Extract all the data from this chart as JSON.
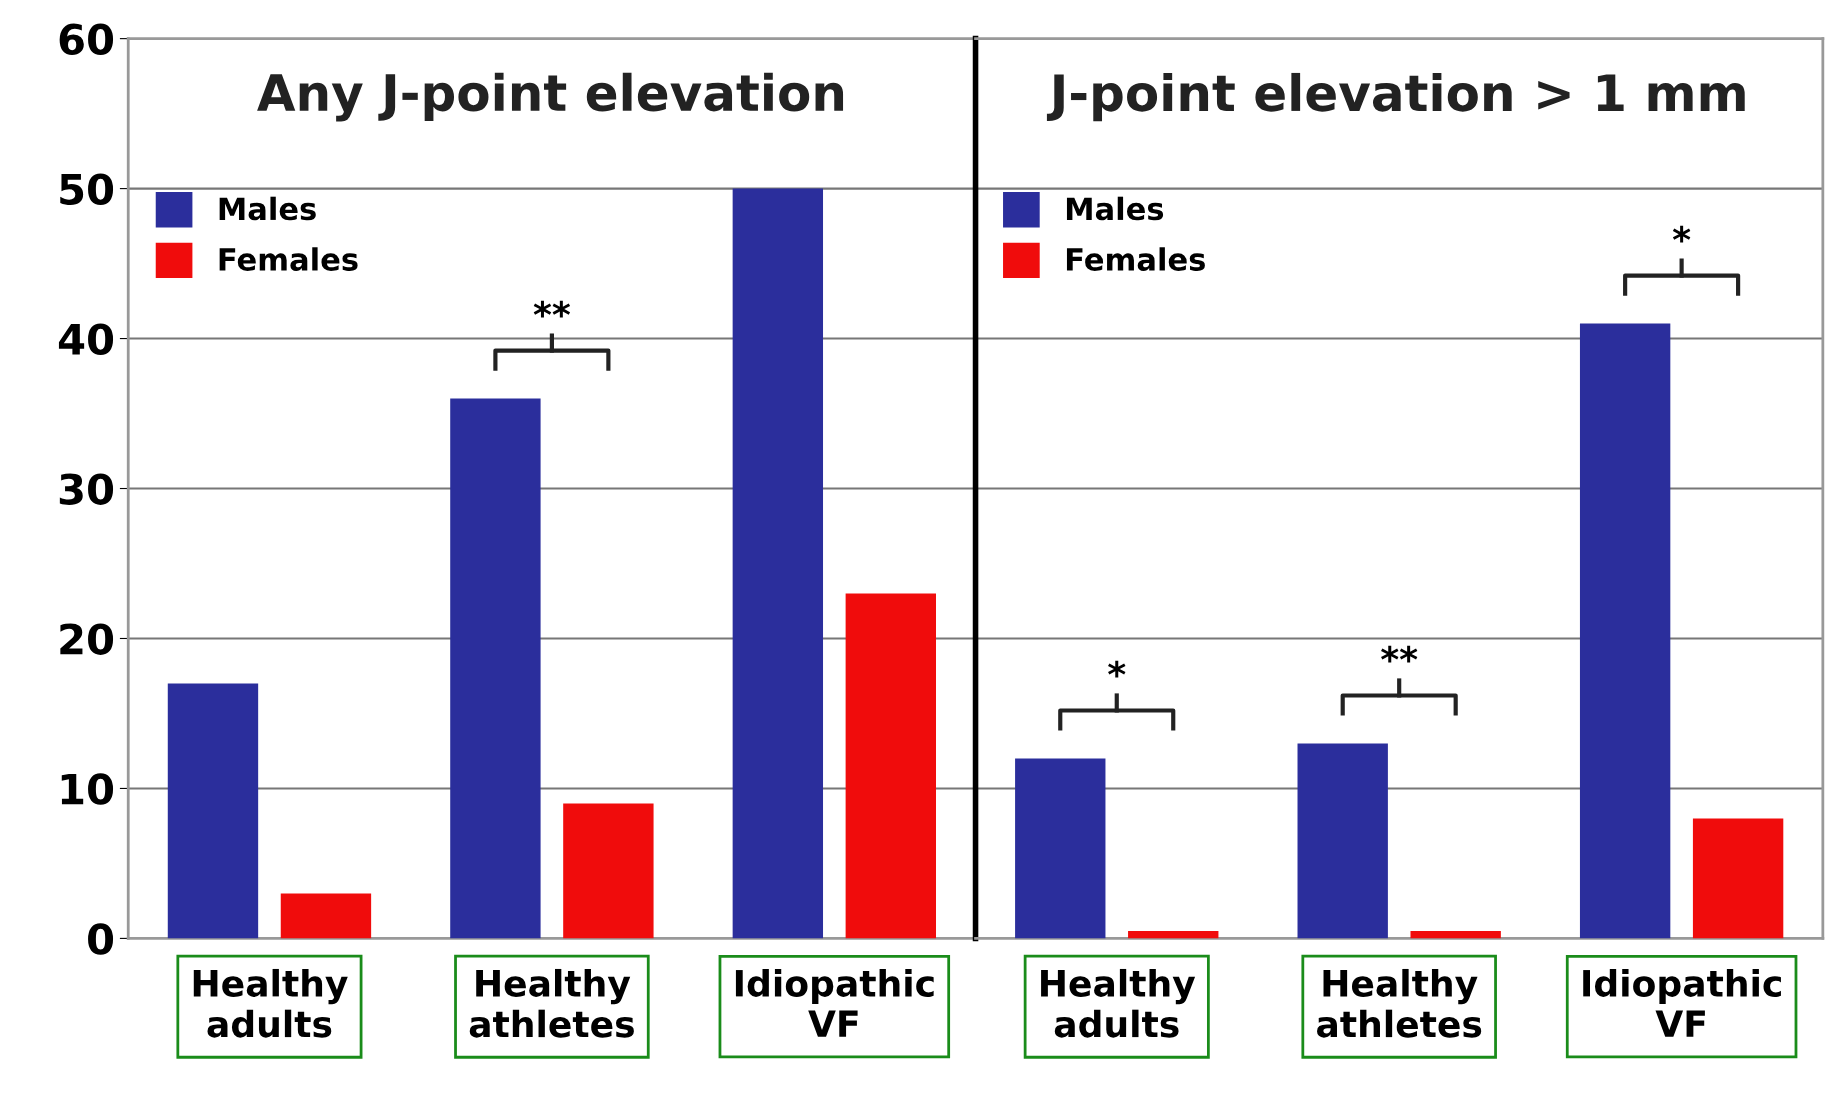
{
  "chart_data": [
    {
      "type": "bar",
      "title": "Any J-point elevation",
      "categories": [
        "Healthy\nadults",
        "Healthy\nathletes",
        "Idiopathic\nVF"
      ],
      "series": [
        {
          "name": "Males",
          "color": "#2b2e9c",
          "values": [
            17,
            36,
            50
          ]
        },
        {
          "name": "Females",
          "color": "#f00c0c",
          "values": [
            3,
            9,
            23
          ]
        }
      ],
      "ylim": [
        0,
        60
      ],
      "yticks": [
        0,
        10,
        20,
        30,
        40,
        50,
        60
      ],
      "grid": "y",
      "legend": "top left",
      "annotations": [
        "**"
      ]
    },
    {
      "type": "bar",
      "title": "J-point elevation > 1 mm",
      "categories": [
        "Healthy\nadults",
        "Healthy\nathletes",
        "Idiopathic\nVF"
      ],
      "series": [
        {
          "name": "Males",
          "color": "#2b2e9c",
          "values": [
            12,
            13,
            41
          ]
        },
        {
          "name": "Females",
          "color": "#f00c0c",
          "values": [
            0.5,
            0.5,
            8
          ]
        }
      ],
      "ylim": [
        0,
        60
      ],
      "yticks": [
        0,
        10,
        20,
        30,
        40,
        50,
        60
      ],
      "grid": "y",
      "legend": "top left",
      "tick_labels": "x",
      "annotations": [
        "*",
        "**",
        "*"
      ]
    }
  ]
}
